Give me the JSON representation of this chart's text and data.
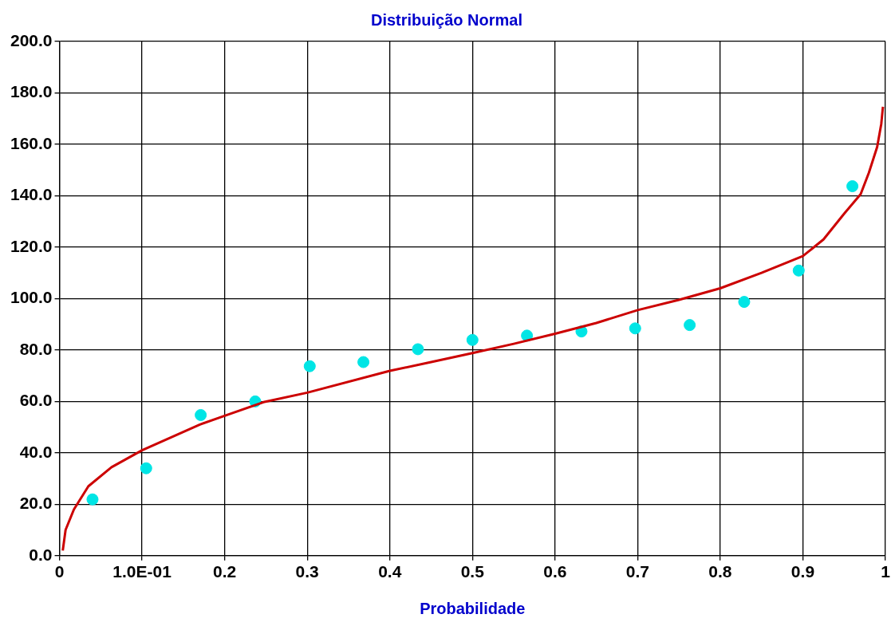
{
  "chart_data": {
    "type": "scatter",
    "title": "Distribuição Normal",
    "xlabel": "Probabilidade",
    "xlim": [
      0,
      1
    ],
    "xticks": [
      0,
      {
        "value": 0.1,
        "label": "1.0E-01"
      },
      0.2,
      0.3,
      0.4,
      0.5,
      0.6,
      0.7,
      0.8,
      0.9,
      1
    ],
    "ylim": [
      0,
      200
    ],
    "yticks": [
      {
        "value": 0,
        "label": "0.0"
      },
      {
        "value": 20,
        "label": "20.0"
      },
      {
        "value": 40,
        "label": "40.0"
      },
      {
        "value": 60,
        "label": "60.0"
      },
      {
        "value": 80,
        "label": "80.0"
      },
      {
        "value": 100,
        "label": "100.0"
      },
      {
        "value": 120,
        "label": "120.0"
      },
      {
        "value": 140,
        "label": "140.0"
      },
      {
        "value": 160,
        "label": "160.0"
      },
      {
        "value": 180,
        "label": "180.0"
      },
      {
        "value": 200,
        "label": "200.0"
      }
    ],
    "grid": true,
    "legend": false,
    "series": [
      {
        "type": "line",
        "marker": "none",
        "color": "#cc0000",
        "x": [
          0.004,
          0.0074,
          0.0175,
          0.035,
          0.063,
          0.1,
          0.17,
          0.2,
          0.247,
          0.3,
          0.4,
          0.45,
          0.5,
          0.55,
          0.6,
          0.65,
          0.7,
          0.75,
          0.8,
          0.85,
          0.9,
          0.925,
          0.95,
          0.97,
          0.98,
          0.99,
          0.995,
          0.997
        ],
        "values": [
          2,
          10,
          18,
          27,
          34.4,
          41,
          51,
          54.4,
          59.7,
          63.4,
          71.9,
          75.3,
          78.8,
          82.4,
          86.3,
          90.5,
          95.5,
          99.5,
          104,
          110,
          116.5,
          123,
          133,
          140.6,
          149,
          159,
          168,
          174.6
        ]
      },
      {
        "type": "scatter",
        "marker": "circle",
        "color": "#00e5e5",
        "x": [
          0.04,
          0.105,
          0.171,
          0.237,
          0.303,
          0.368,
          0.434,
          0.5,
          0.566,
          0.632,
          0.697,
          0.763,
          0.829,
          0.895,
          0.96
        ],
        "values": [
          21.9,
          34,
          54.7,
          60,
          73.7,
          75.3,
          80.3,
          83.9,
          85.6,
          87.2,
          88.4,
          89.7,
          98.7,
          110.9,
          143.7
        ]
      }
    ]
  }
}
